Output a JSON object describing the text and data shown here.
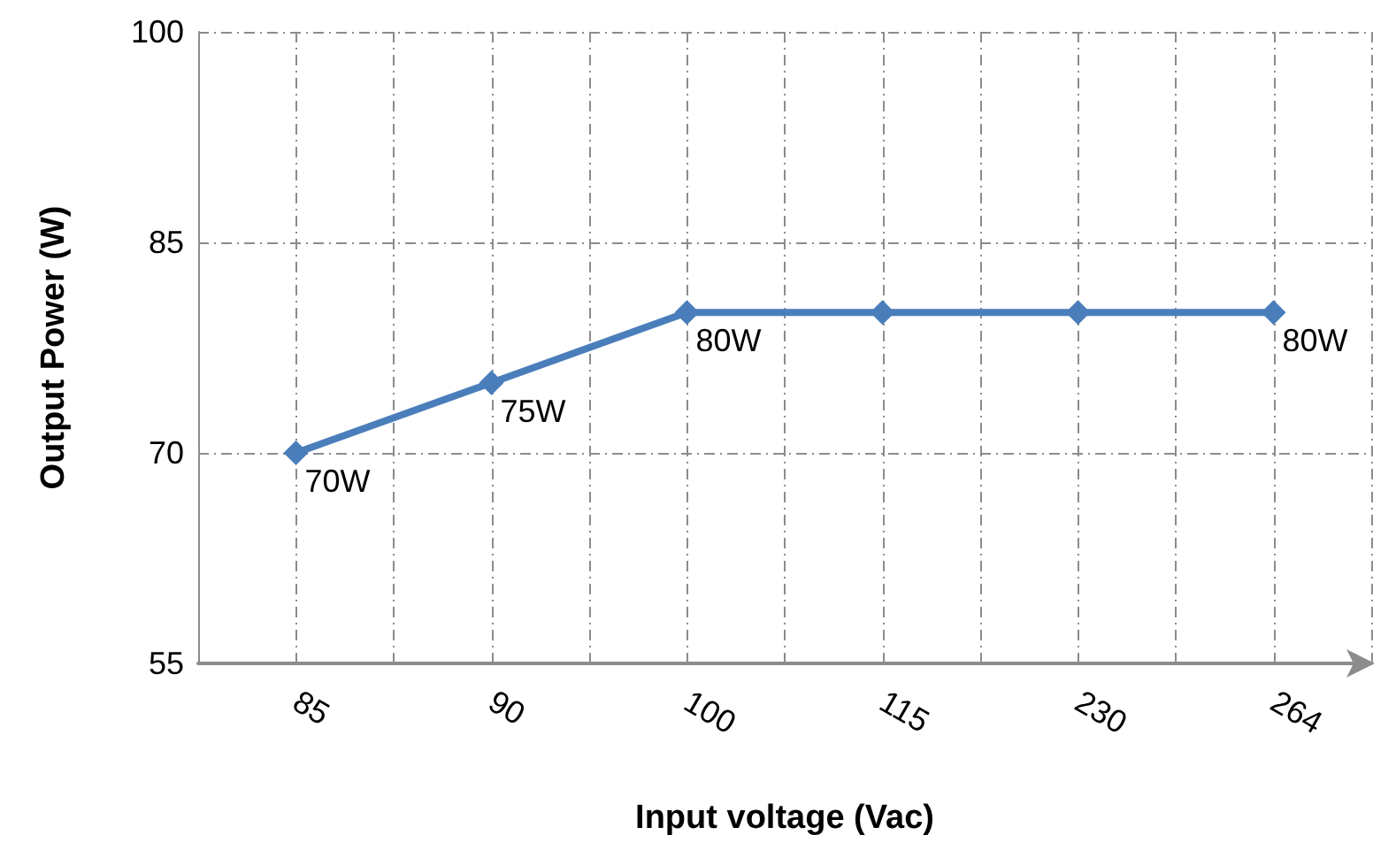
{
  "chart_data": {
    "type": "line",
    "xlabel": "Input voltage (Vac)",
    "ylabel": "Output Power (W)",
    "categories": [
      "85",
      "90",
      "100",
      "115",
      "230",
      "264"
    ],
    "series": [
      {
        "color": "#4a7ebb",
        "values": [
          70,
          75,
          80,
          80,
          80,
          80
        ],
        "value_labels": [
          "70W",
          "75W",
          "80W",
          null,
          null,
          "80W"
        ]
      }
    ],
    "ylim": [
      55,
      100
    ],
    "yticks": [
      55,
      70,
      85,
      100
    ],
    "grid": true,
    "marker": "diamond",
    "line_style": "solid"
  }
}
